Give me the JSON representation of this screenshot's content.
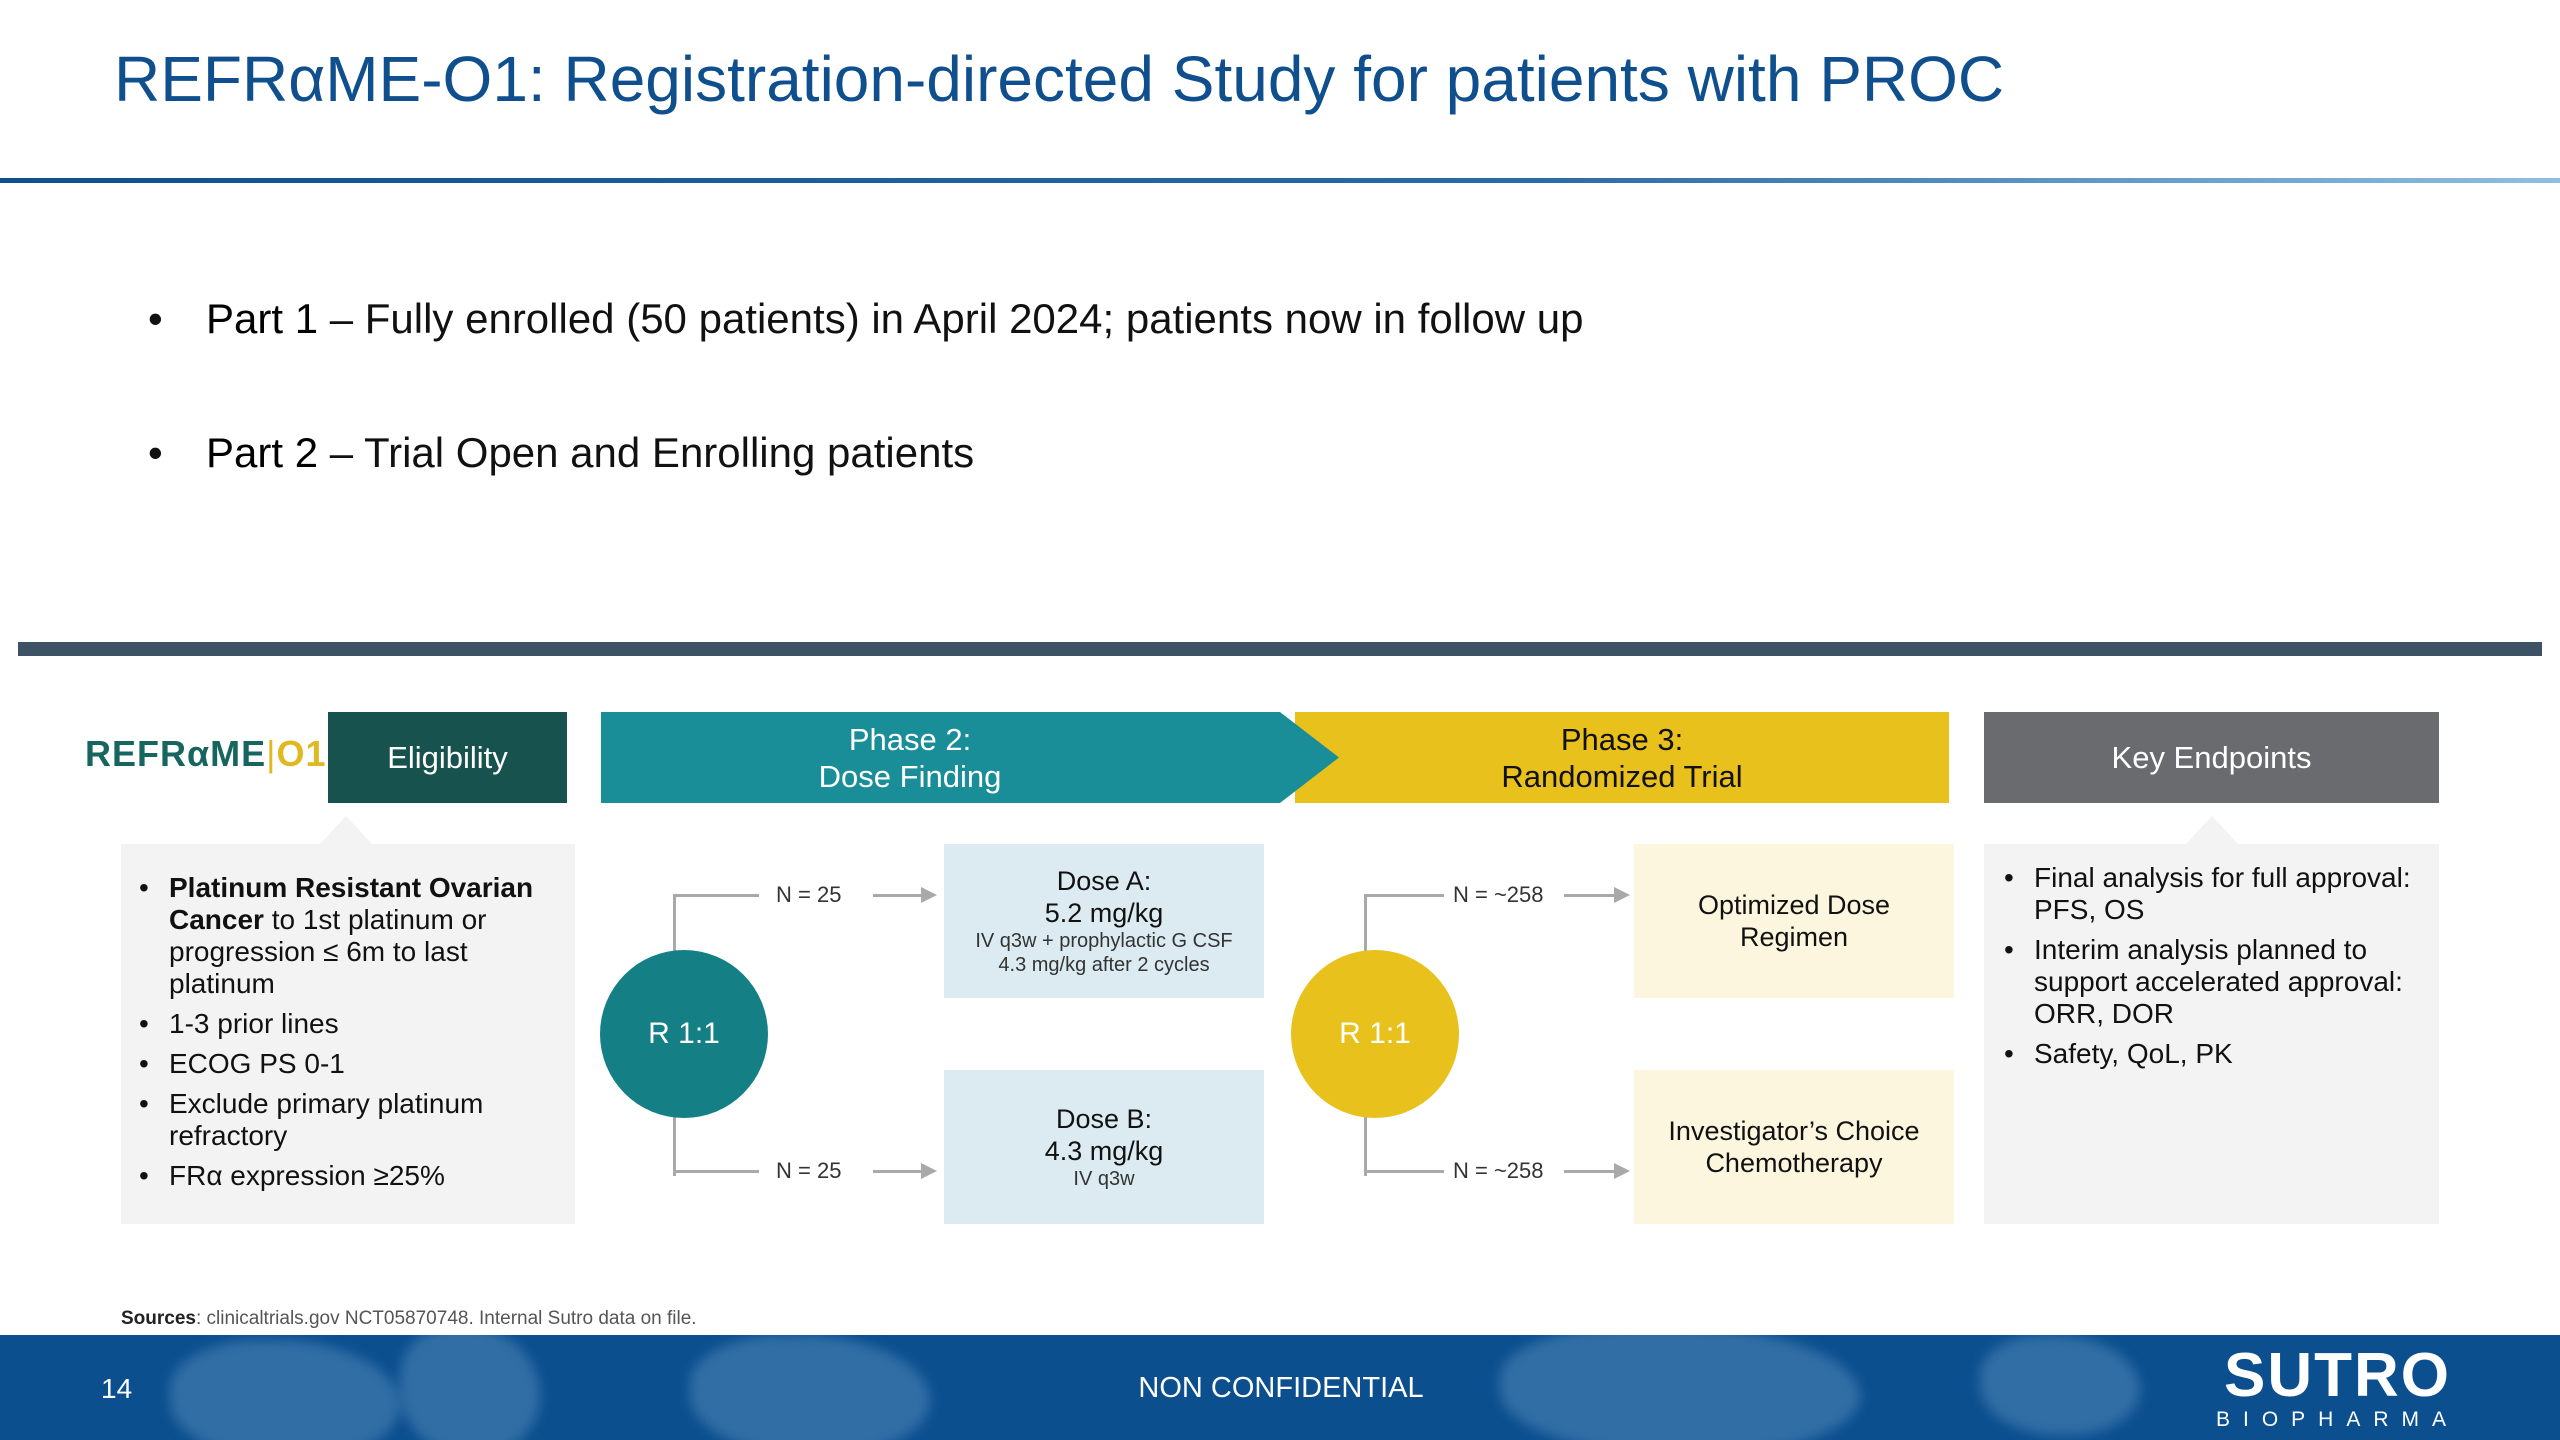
{
  "title": "REFRαME-O1: Registration-directed Study for patients with PROC",
  "bullets": [
    {
      "label": "Part 1",
      "text": " – Fully enrolled (50 patients) in April 2024; patients now in follow up"
    },
    {
      "label": "Part 2",
      "text": " – Trial Open and Enrolling patients"
    }
  ],
  "bullet_glyph": "•",
  "logo": {
    "main": "REFRαME",
    "sep": "|",
    "suffix": "O1"
  },
  "headers": {
    "eligibility": "Eligibility",
    "phase2_line1": "Phase 2:",
    "phase2_line2": "Dose Finding",
    "phase3_line1": "Phase 3:",
    "phase3_line2": "Randomized Trial",
    "key_endpoints": "Key Endpoints"
  },
  "eligibility": {
    "first_bold": "Platinum Resistant Ovarian Cancer",
    "first_rest": " to 1st platinum or progression ≤ 6m to last platinum",
    "items": [
      "1-3 prior lines",
      "ECOG PS 0-1",
      "Exclude primary platinum refractory",
      "FRα expression ≥25%"
    ]
  },
  "phase2": {
    "randomization": "R 1:1",
    "n_top": "N = 25",
    "n_bottom": "N = 25",
    "dose_a": {
      "title": "Dose A:",
      "dose": "5.2 mg/kg",
      "detail1": "IV q3w + prophylactic G CSF",
      "detail2": "4.3 mg/kg after 2 cycles"
    },
    "dose_b": {
      "title": "Dose B:",
      "dose": "4.3 mg/kg",
      "detail1": "IV q3w"
    }
  },
  "phase3": {
    "randomization": "R 1:1",
    "n_top": "N = ~258",
    "n_bottom": "N = ~258",
    "arm1": {
      "line1": "Optimized Dose",
      "line2": "Regimen"
    },
    "arm2": {
      "line1": "Investigator’s Choice",
      "line2": "Chemotherapy"
    }
  },
  "key_endpoints": [
    "Final analysis for full approval: PFS, OS",
    "Interim analysis planned to support accelerated approval: ORR, DOR",
    "Safety, QoL, PK"
  ],
  "sources": {
    "label": "Sources",
    "text": ": clinicaltrials.gov NCT05870748. Internal Sutro data on file."
  },
  "footer": {
    "page_number": "14",
    "classification": "NON CONFIDENTIAL",
    "brand_main": "SUTRO",
    "brand_sub": "BIOPHARMA"
  },
  "colors": {
    "title": "#0f4f8e",
    "eligibility": "#17524f",
    "phase2": "#1a8e98",
    "phase3": "#e9c11d",
    "key_endpoints": "#696b6e",
    "footer": "#0c4f8f"
  }
}
